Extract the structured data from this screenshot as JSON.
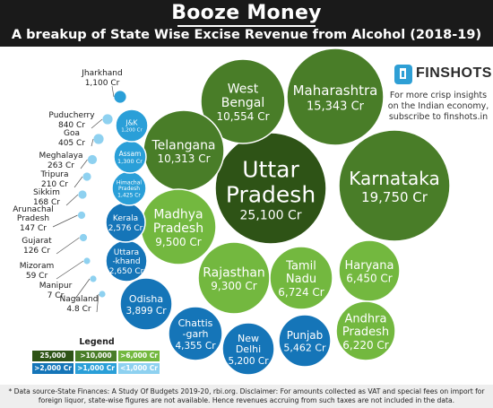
{
  "header": {
    "title": "Booze Money",
    "subtitle": "A breakup of State Wise Excise Revenue from Alcohol (2018-19)"
  },
  "brand": {
    "name": "FINSHOTS",
    "tagline": "For more crisp insights on the Indian economy, subscribe to finshots.in"
  },
  "chart_data": {
    "type": "bubble",
    "unit": "Cr",
    "title": "Booze Money",
    "subtitle": "A breakup of State Wise Excise Revenue from Alcohol (2018-19)",
    "states": [
      {
        "name": "Uttar Pradesh",
        "lines": [
          "Uttar",
          "Pradesh"
        ],
        "value": 25100,
        "label": "25,100 Cr",
        "tier": "25000+"
      },
      {
        "name": "Karnataka",
        "lines": [
          "Karnataka"
        ],
        "value": 19750,
        "label": "19,750 Cr",
        "tier": "10000+"
      },
      {
        "name": "Maharashtra",
        "lines": [
          "Maharashtra"
        ],
        "value": 15343,
        "label": "15,343 Cr",
        "tier": "10000+"
      },
      {
        "name": "West Bengal",
        "lines": [
          "West",
          "Bengal"
        ],
        "value": 10554,
        "label": "10,554 Cr",
        "tier": "10000+"
      },
      {
        "name": "Telangana",
        "lines": [
          "Telangana"
        ],
        "value": 10313,
        "label": "10,313 Cr",
        "tier": "10000+"
      },
      {
        "name": "Madhya Pradesh",
        "lines": [
          "Madhya",
          "Pradesh"
        ],
        "value": 9500,
        "label": "9,500 Cr",
        "tier": "6000+"
      },
      {
        "name": "Rajasthan",
        "lines": [
          "Rajasthan"
        ],
        "value": 9300,
        "label": "9,300 Cr",
        "tier": "6000+"
      },
      {
        "name": "Tamil Nadu",
        "lines": [
          "Tamil",
          "Nadu"
        ],
        "value": 6724,
        "label": "6,724 Cr",
        "tier": "6000+"
      },
      {
        "name": "Haryana",
        "lines": [
          "Haryana"
        ],
        "value": 6450,
        "label": "6,450 Cr",
        "tier": "6000+"
      },
      {
        "name": "Andhra Pradesh",
        "lines": [
          "Andhra",
          "Pradesh"
        ],
        "value": 6220,
        "label": "6,220 Cr",
        "tier": "6000+"
      },
      {
        "name": "Punjab",
        "lines": [
          "Punjab"
        ],
        "value": 5462,
        "label": "5,462 Cr",
        "tier": "2000+"
      },
      {
        "name": "New Delhi",
        "lines": [
          "New",
          "Delhi"
        ],
        "value": 5200,
        "label": "5,200 Cr",
        "tier": "2000+"
      },
      {
        "name": "Chattisgarh",
        "lines": [
          "Chattis",
          "-garh"
        ],
        "value": 4355,
        "label": "4,355 Cr",
        "tier": "2000+"
      },
      {
        "name": "Odisha",
        "lines": [
          "Odisha"
        ],
        "value": 3899,
        "label": "3,899 Cr",
        "tier": "2000+"
      },
      {
        "name": "Uttarakhand",
        "lines": [
          "Uttara",
          "-khand"
        ],
        "value": 2650,
        "label": "2,650 Cr",
        "tier": "2000+"
      },
      {
        "name": "Kerala",
        "lines": [
          "Kerala"
        ],
        "value": 2576,
        "label": "2,576 Cr",
        "tier": "2000+"
      },
      {
        "name": "Himachal Pradesh",
        "lines": [
          "Himachal",
          "Pradesh"
        ],
        "value": 1425,
        "label": "1,425 Cr",
        "tier": "1000+"
      },
      {
        "name": "Assam",
        "lines": [
          "Assam"
        ],
        "value": 1300,
        "label": "1,300 Cr",
        "tier": "1000+"
      },
      {
        "name": "J&K",
        "lines": [
          "J&K"
        ],
        "value": 1200,
        "label": "1,200 Cr",
        "tier": "1000+"
      },
      {
        "name": "Jharkhand",
        "lines": [
          "Jharkhand"
        ],
        "value": 1100,
        "label": "1,100 Cr",
        "tier": "1000+"
      },
      {
        "name": "Puducherry",
        "lines": [
          "Puducherry"
        ],
        "value": 840,
        "label": "840 Cr",
        "tier": "<1000"
      },
      {
        "name": "Goa",
        "lines": [
          "Goa"
        ],
        "value": 405,
        "label": "405 Cr",
        "tier": "<1000"
      },
      {
        "name": "Meghalaya",
        "lines": [
          "Meghalaya"
        ],
        "value": 263,
        "label": "263 Cr",
        "tier": "<1000"
      },
      {
        "name": "Tripura",
        "lines": [
          "Tripura"
        ],
        "value": 210,
        "label": "210 Cr",
        "tier": "<1000"
      },
      {
        "name": "Sikkim",
        "lines": [
          "Sikkim"
        ],
        "value": 168,
        "label": "168 Cr",
        "tier": "<1000"
      },
      {
        "name": "Arunachal Pradesh",
        "lines": [
          "Arunachal",
          "Pradesh"
        ],
        "value": 147,
        "label": "147 Cr",
        "tier": "<1000"
      },
      {
        "name": "Gujarat",
        "lines": [
          "Gujarat"
        ],
        "value": 126,
        "label": "126 Cr",
        "tier": "<1000"
      },
      {
        "name": "Mizoram",
        "lines": [
          "Mizoram"
        ],
        "value": 59,
        "label": "59 Cr",
        "tier": "<1000"
      },
      {
        "name": "Manipur",
        "lines": [
          "Manipur"
        ],
        "value": 7,
        "label": "7 Cr",
        "tier": "<1000"
      },
      {
        "name": "Nagaland",
        "lines": [
          "Nagaland"
        ],
        "value": 4.8,
        "label": "4.8 Cr",
        "tier": "<1000"
      }
    ],
    "legend": {
      "title": "Legend",
      "items": [
        {
          "label": "25,000 Cr+",
          "tier": "25000+",
          "color": "#2e5316"
        },
        {
          "label": ">10,000 Cr",
          "tier": "10000+",
          "color": "#497d28"
        },
        {
          "label": ">6,000 Cr",
          "tier": "6000+",
          "color": "#73b83f"
        },
        {
          "label": ">2,000 Cr",
          "tier": "2000+",
          "color": "#1575b8"
        },
        {
          "label": ">1,000 Cr",
          "tier": "1000+",
          "color": "#2a9fd8"
        },
        {
          "label": "<1,000 Cr",
          "tier": "<1000",
          "color": "#8ed1f0"
        }
      ]
    }
  },
  "footnote": "* Data source-State Finances: A Study Of Budgets 2019-20, rbi.org. Disclaimer: For amounts collected as VAT and special fees on import for foreign liquor, state-wise figures are not available. Hence revenues accruing from such taxes are not included in the data."
}
